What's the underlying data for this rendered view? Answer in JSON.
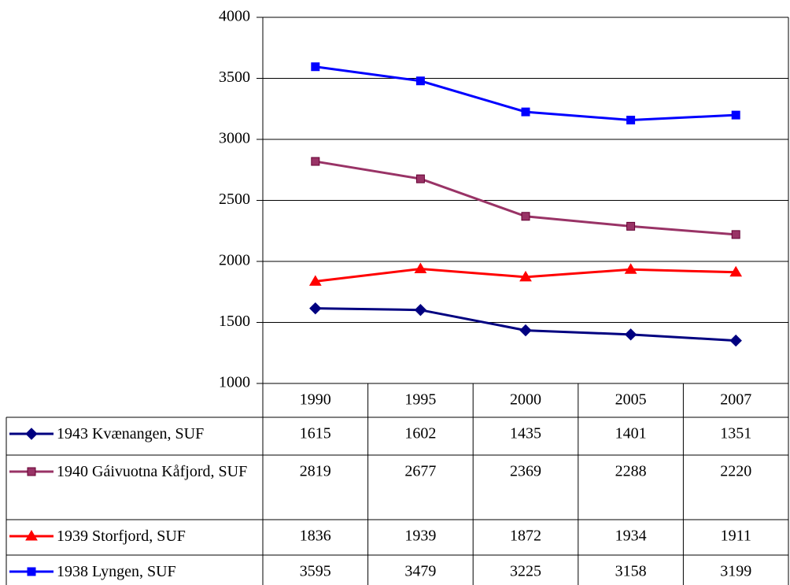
{
  "chart_data": {
    "type": "line",
    "categories": [
      "1990",
      "1995",
      "2000",
      "2005",
      "2007"
    ],
    "series": [
      {
        "name": "1943 Kvænangen, SUF",
        "color": "#000080",
        "marker": "diamond",
        "values": [
          1615,
          1602,
          1435,
          1401,
          1351
        ]
      },
      {
        "name": "1940 Gáivuotna Kåfjord, SUF",
        "color": "#993366",
        "marker": "square",
        "values": [
          2819,
          2677,
          2369,
          2288,
          2220
        ]
      },
      {
        "name": "1939 Storfjord, SUF",
        "color": "#ff0000",
        "marker": "triangle",
        "values": [
          1836,
          1939,
          1872,
          1934,
          1911
        ]
      },
      {
        "name": "1938 Lyngen, SUF",
        "color": "#0000ff",
        "marker": "square",
        "values": [
          3595,
          3479,
          3225,
          3158,
          3199
        ]
      }
    ],
    "ylim": [
      1000,
      4000
    ],
    "yticks": [
      1000,
      1500,
      2000,
      2500,
      3000,
      3500,
      4000
    ],
    "grid": true
  }
}
